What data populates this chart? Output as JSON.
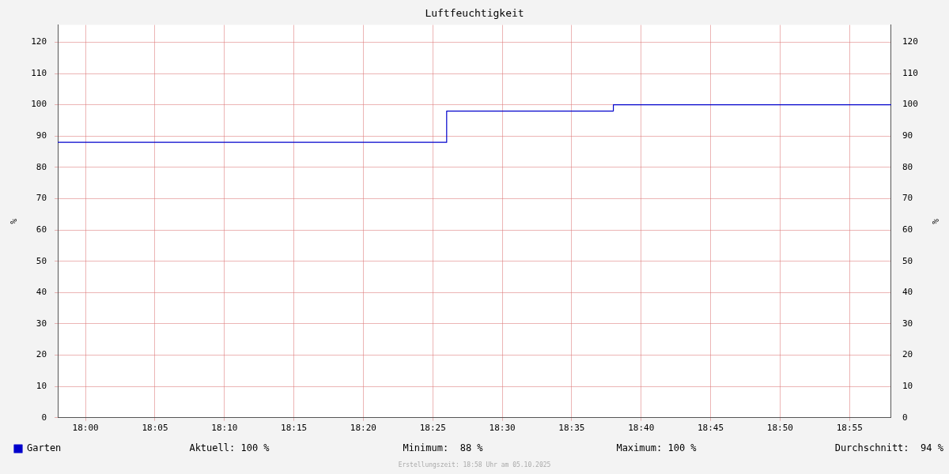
{
  "chart_data": {
    "type": "step",
    "title": "Luftfeuchtigkeit",
    "ylabel": "%",
    "y2label": "%",
    "x": [
      17.9667,
      18.4333,
      18.6333,
      18.9667
    ],
    "series": [
      {
        "name": "Garten",
        "color": "#0000cc",
        "values": [
          88,
          98,
          100,
          100
        ]
      }
    ],
    "xlim": [
      17.9667,
      18.9667
    ],
    "xticks": [
      {
        "value": 18,
        "label": "18:00"
      },
      {
        "value": 18.0833,
        "label": "18:05"
      },
      {
        "value": 18.1667,
        "label": "18:10"
      },
      {
        "value": 18.25,
        "label": "18:15"
      },
      {
        "value": 18.3333,
        "label": "18:20"
      },
      {
        "value": 18.4167,
        "label": "18:25"
      },
      {
        "value": 18.5,
        "label": "18:30"
      },
      {
        "value": 18.5833,
        "label": "18:35"
      },
      {
        "value": 18.6667,
        "label": "18:40"
      },
      {
        "value": 18.75,
        "label": "18:45"
      },
      {
        "value": 18.8333,
        "label": "18:50"
      },
      {
        "value": 18.9167,
        "label": "18:55"
      }
    ],
    "ylim": [
      0,
      125.5
    ],
    "yticks": [
      0,
      10,
      20,
      30,
      40,
      50,
      60,
      70,
      80,
      90,
      100,
      110,
      120
    ],
    "y2lim": [
      0,
      125.5
    ],
    "y2ticks": [
      0,
      10,
      20,
      30,
      40,
      50,
      60,
      70,
      80,
      90,
      100,
      110,
      120
    ],
    "grid": true,
    "legend": "bottom left",
    "marker": "none",
    "line_style": "solid",
    "annotations": [
      "Aktuell: 100 %",
      "Minimum:  88 %",
      "Maximum: 100 %",
      "Durchschnitt:  94 %",
      "Erstellungszeit: 18:58 Uhr am 05.10.2025"
    ]
  }
}
